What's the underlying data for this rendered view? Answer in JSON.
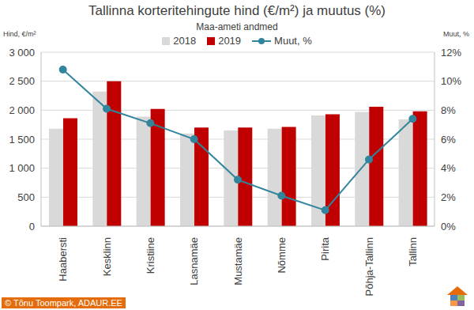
{
  "chart_data": {
    "type": "bar",
    "title": "Tallinna korteritehingute hind (€/m²) ja muutus (%)",
    "subtitle": "Maa-ameti andmed",
    "y_label": "Hind, €/m²",
    "y2_label": "Muut, %",
    "annotation": "© Tõnu Toompark, ADAUR.EE",
    "categories": [
      "Haabersti",
      "Kesklinn",
      "Kristiine",
      "Lasnamäe",
      "Mustamäe",
      "Nõmme",
      "Pirita",
      "Põhja-Tallinn",
      "Tallinn"
    ],
    "series": [
      {
        "name": "2018",
        "color": "#d9d9d9",
        "values": [
          1680,
          2320,
          1890,
          1600,
          1650,
          1680,
          1910,
          1970,
          1840
        ]
      },
      {
        "name": "2019",
        "color": "#c00000",
        "values": [
          1860,
          2500,
          2020,
          1700,
          1700,
          1710,
          1930,
          2060,
          1980
        ]
      },
      {
        "name": "Muut, %",
        "type": "line",
        "axis": "y2",
        "color": "#31859c",
        "marker": "circle",
        "values": [
          10.8,
          8.1,
          7.1,
          6.0,
          3.2,
          2.1,
          1.1,
          4.6,
          7.4
        ]
      }
    ],
    "ylim": [
      0,
      3000
    ],
    "yticks": [
      0,
      500,
      {
        "value": 1000,
        "label": "1 000"
      },
      {
        "value": 1500,
        "label": "1 500"
      },
      {
        "value": 2000,
        "label": "2 000"
      },
      {
        "value": 2500,
        "label": "2 500"
      },
      {
        "value": 3000,
        "label": "3 000"
      }
    ],
    "y2lim": [
      0,
      12
    ],
    "y2ticks": [
      {
        "value": 0,
        "label": "0%"
      },
      {
        "value": 2,
        "label": "2%"
      },
      {
        "value": 4,
        "label": "4%"
      },
      {
        "value": 6,
        "label": "6%"
      },
      {
        "value": 8,
        "label": "8%"
      },
      {
        "value": 10,
        "label": "10%"
      },
      {
        "value": 12,
        "label": "12%"
      }
    ],
    "grid": true,
    "legend": "top"
  }
}
